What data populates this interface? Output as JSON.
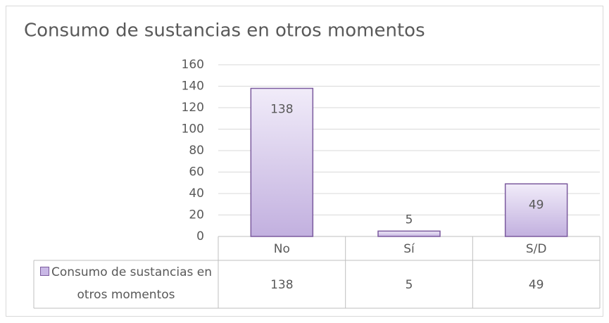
{
  "chart_data": {
    "type": "bar",
    "title": "Consumo de sustancias en otros momentos",
    "categories": [
      "No",
      "Sí",
      "S/D"
    ],
    "series": [
      {
        "name": "Consumo de sustancias en otros momentos",
        "color": "#c9b8e6",
        "values": [
          138,
          5,
          49
        ]
      }
    ],
    "ylim": [
      0,
      160
    ],
    "yticks": [
      0,
      20,
      40,
      60,
      80,
      100,
      120,
      140,
      160
    ],
    "grid": true,
    "data_table": true
  }
}
